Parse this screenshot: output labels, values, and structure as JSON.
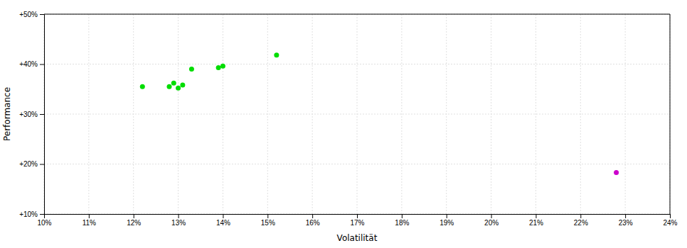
{
  "chart_data": {
    "type": "scatter",
    "xlabel": "Volatilität",
    "ylabel": "Performance",
    "xlim": [
      0.1,
      0.24
    ],
    "ylim": [
      0.1,
      0.5
    ],
    "xticks": [
      {
        "value": 0.1,
        "label": "10%"
      },
      {
        "value": 0.11,
        "label": "11%"
      },
      {
        "value": 0.12,
        "label": "12%"
      },
      {
        "value": 0.13,
        "label": "13%"
      },
      {
        "value": 0.14,
        "label": "14%"
      },
      {
        "value": 0.15,
        "label": "15%"
      },
      {
        "value": 0.16,
        "label": "16%"
      },
      {
        "value": 0.17,
        "label": "17%"
      },
      {
        "value": 0.18,
        "label": "18%"
      },
      {
        "value": 0.19,
        "label": "19%"
      },
      {
        "value": 0.2,
        "label": "20%"
      },
      {
        "value": 0.21,
        "label": "21%"
      },
      {
        "value": 0.22,
        "label": "22%"
      },
      {
        "value": 0.23,
        "label": "23%"
      },
      {
        "value": 0.24,
        "label": "24%"
      }
    ],
    "yticks": [
      {
        "value": 0.1,
        "label": "+10%"
      },
      {
        "value": 0.2,
        "label": "+20%"
      },
      {
        "value": 0.3,
        "label": "+30%"
      },
      {
        "value": 0.4,
        "label": "+40%"
      },
      {
        "value": 0.5,
        "label": "+50%"
      }
    ],
    "grid": true,
    "series": [
      {
        "color": "#00dd00",
        "x": [
          0.122,
          0.128,
          0.129,
          0.13,
          0.131,
          0.133,
          0.139,
          0.14,
          0.152
        ],
        "values": [
          0.355,
          0.355,
          0.362,
          0.352,
          0.358,
          0.39,
          0.393,
          0.396,
          0.418
        ]
      },
      {
        "color": "#cc00cc",
        "x": [
          0.228
        ],
        "values": [
          0.183
        ]
      }
    ]
  }
}
